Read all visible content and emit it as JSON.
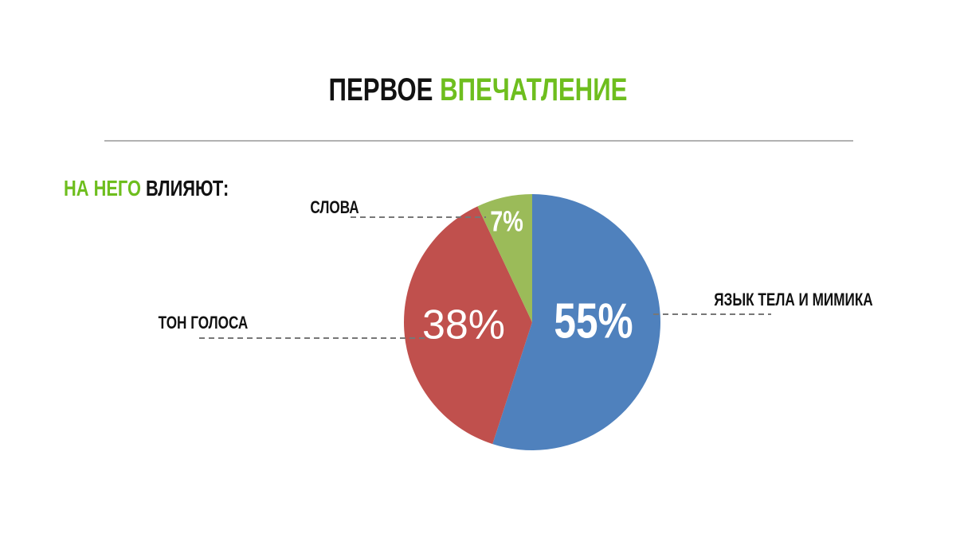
{
  "header": {
    "title": [
      "ПЕРВОЕ",
      "ВПЕЧАТЛЕНИЕ"
    ],
    "subtitle": [
      "НА НЕГО",
      "ВЛИЯЮТ:"
    ],
    "accent_color": "#6ebe1e"
  },
  "chart_data": {
    "type": "pie",
    "categories": [
      "ЯЗЫК ТЕЛА И МИМИКА",
      "ТОН ГОЛОСА",
      "СЛОВА"
    ],
    "values": [
      55,
      38,
      7
    ],
    "value_labels": [
      "55%",
      "38%",
      "7%"
    ],
    "colors": [
      "#4f81bd",
      "#c0504d",
      "#9bbb59"
    ]
  }
}
